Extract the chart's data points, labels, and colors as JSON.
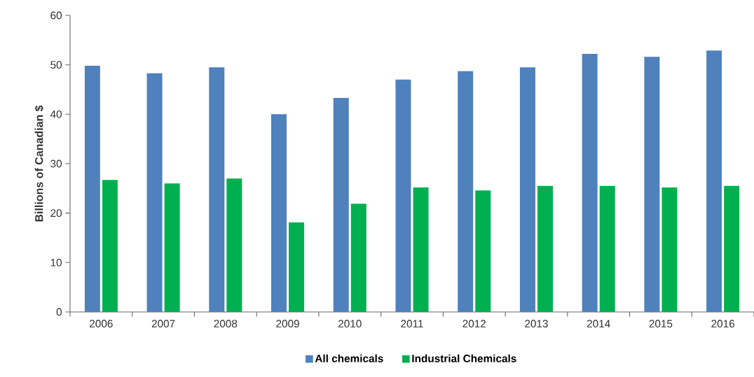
{
  "chart_data": {
    "type": "bar",
    "ylabel": "Billions of Canadian $",
    "categories": [
      "2006",
      "2007",
      "2008",
      "2009",
      "2010",
      "2011",
      "2012",
      "2013",
      "2014",
      "2015",
      "2016"
    ],
    "series": [
      {
        "name": "All chemicals",
        "color": "#4f81bd",
        "values": [
          49.8,
          48.3,
          49.5,
          40.0,
          43.3,
          47.0,
          48.7,
          49.5,
          52.2,
          51.6,
          52.9
        ]
      },
      {
        "name": "Industrial Chemicals",
        "color": "#00b050",
        "values": [
          26.7,
          26.0,
          27.0,
          18.1,
          21.9,
          25.2,
          24.6,
          25.5,
          25.5,
          25.2,
          25.5
        ]
      }
    ],
    "ylim": [
      0,
      60
    ],
    "yticks": [
      0,
      10,
      20,
      30,
      40,
      50,
      60
    ],
    "grid": false,
    "legend": "bottom"
  }
}
